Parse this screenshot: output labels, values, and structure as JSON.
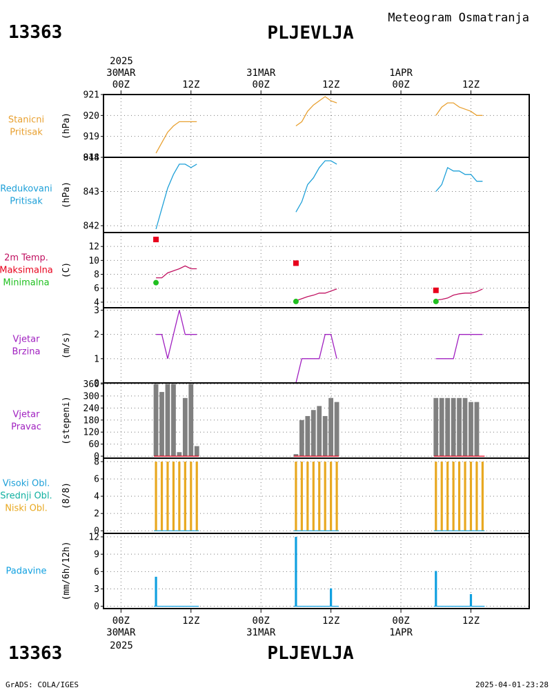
{
  "header": {
    "station_id": "13363",
    "station_name": "PLJEVLJA",
    "product": "Meteogram Osmatranja"
  },
  "footer": {
    "credit": "GrADS: COLA/IGES",
    "timestamp": "2025-04-01-23:28"
  },
  "colors": {
    "orange": "#e8a030",
    "cyan": "#1ea0d8",
    "red": "#e8001c",
    "green": "#20c020",
    "magenta": "#c01060",
    "purple": "#a020c0",
    "gray": "#808080",
    "yellow": "#e8a820",
    "teal": "#10b0a0",
    "blue": "#10a0e0",
    "grid": "#777777"
  },
  "time_axis": {
    "top_year": "2025",
    "bottom_year": "2025",
    "ticks": [
      {
        "h": 0,
        "label": "00Z",
        "date": "30MAR"
      },
      {
        "h": 12,
        "label": "12Z",
        "date": ""
      },
      {
        "h": 24,
        "label": "00Z",
        "date": "31MAR"
      },
      {
        "h": 36,
        "label": "12Z",
        "date": ""
      },
      {
        "h": 48,
        "label": "00Z",
        "date": "1APR"
      },
      {
        "h": 60,
        "label": "12Z",
        "date": ""
      }
    ],
    "range_hours": [
      -3,
      70
    ]
  },
  "chart_data": [
    {
      "type": "line",
      "label_lines": [
        {
          "text": "Stanicni",
          "color": "#e8a030"
        },
        {
          "text": "Pritisak",
          "color": "#e8a030"
        }
      ],
      "unit": "(hPa)",
      "ylim": [
        918,
        921
      ],
      "yticks": [
        {
          "v": 918,
          "t": "918"
        },
        {
          "v": 919,
          "t": "919"
        },
        {
          "v": 920,
          "t": "920"
        },
        {
          "v": 921,
          "t": "921"
        }
      ],
      "series": [
        {
          "color": "#e8a030",
          "segments": [
            [
              [
                6,
                918.2
              ],
              [
                7,
                918.7
              ],
              [
                8,
                919.2
              ],
              [
                9,
                919.5
              ],
              [
                10,
                919.7
              ],
              [
                11,
                919.7
              ],
              [
                12,
                919.7
              ],
              [
                13,
                919.7
              ]
            ],
            [
              [
                30,
                919.5
              ],
              [
                31,
                919.7
              ],
              [
                32,
                920.2
              ],
              [
                33,
                920.5
              ],
              [
                34,
                920.7
              ],
              [
                35,
                920.9
              ],
              [
                36,
                920.7
              ],
              [
                37,
                920.6
              ]
            ],
            [
              [
                54,
                920.0
              ],
              [
                55,
                920.4
              ],
              [
                56,
                920.6
              ],
              [
                57,
                920.6
              ],
              [
                58,
                920.4
              ],
              [
                59,
                920.3
              ],
              [
                60,
                920.2
              ],
              [
                61,
                920.0
              ],
              [
                62,
                920.0
              ]
            ]
          ]
        }
      ]
    },
    {
      "type": "line",
      "label_lines": [
        {
          "text": "Redukovani",
          "color": "#1ea0d8"
        },
        {
          "text": "Pritisak",
          "color": "#1ea0d8"
        }
      ],
      "unit": "(hPa)",
      "ylim": [
        841.8,
        844
      ],
      "yticks": [
        {
          "v": 842,
          "t": "842"
        },
        {
          "v": 843,
          "t": "843"
        },
        {
          "v": 844,
          "t": "844"
        }
      ],
      "series": [
        {
          "color": "#1ea0d8",
          "segments": [
            [
              [
                6,
                841.9
              ],
              [
                7,
                842.5
              ],
              [
                8,
                843.1
              ],
              [
                9,
                843.5
              ],
              [
                10,
                843.8
              ],
              [
                11,
                843.8
              ],
              [
                12,
                843.7
              ],
              [
                13,
                843.8
              ]
            ],
            [
              [
                30,
                842.4
              ],
              [
                31,
                842.7
              ],
              [
                32,
                843.2
              ],
              [
                33,
                843.4
              ],
              [
                34,
                843.7
              ],
              [
                35,
                843.9
              ],
              [
                36,
                843.9
              ],
              [
                37,
                843.8
              ]
            ],
            [
              [
                54,
                843.0
              ],
              [
                55,
                843.2
              ],
              [
                56,
                843.7
              ],
              [
                57,
                843.6
              ],
              [
                58,
                843.6
              ],
              [
                59,
                843.5
              ],
              [
                60,
                843.5
              ],
              [
                61,
                843.3
              ],
              [
                62,
                843.3
              ]
            ]
          ]
        }
      ]
    },
    {
      "type": "line",
      "label_lines": [
        {
          "text": "2m Temp.",
          "color": "#c01060"
        },
        {
          "text": "Maksimalna",
          "color": "#e8001c"
        },
        {
          "text": "Minimalna",
          "color": "#20c020"
        }
      ],
      "unit": "(C)",
      "ylim": [
        3.2,
        14
      ],
      "yticks": [
        {
          "v": 4,
          "t": "4"
        },
        {
          "v": 6,
          "t": "6"
        },
        {
          "v": 8,
          "t": "8"
        },
        {
          "v": 10,
          "t": "10"
        },
        {
          "v": 12,
          "t": "12"
        }
      ],
      "series": [
        {
          "color": "#c01060",
          "segments": [
            [
              [
                6,
                7.5
              ],
              [
                7,
                7.5
              ],
              [
                8,
                8.2
              ],
              [
                9,
                8.5
              ],
              [
                10,
                8.8
              ],
              [
                11,
                9.2
              ],
              [
                12,
                8.8
              ],
              [
                13,
                8.8
              ]
            ],
            [
              [
                30,
                4.2
              ],
              [
                31,
                4.5
              ],
              [
                32,
                4.8
              ],
              [
                33,
                5.0
              ],
              [
                34,
                5.3
              ],
              [
                35,
                5.3
              ],
              [
                36,
                5.6
              ],
              [
                37,
                5.9
              ]
            ],
            [
              [
                54,
                4.3
              ],
              [
                55,
                4.4
              ],
              [
                56,
                4.6
              ],
              [
                57,
                5.0
              ],
              [
                58,
                5.2
              ],
              [
                59,
                5.3
              ],
              [
                60,
                5.3
              ],
              [
                61,
                5.5
              ],
              [
                62,
                5.9
              ]
            ]
          ]
        }
      ],
      "markers": [
        {
          "name": "Maksimalna",
          "shape": "square",
          "color": "#e8001c",
          "points": [
            [
              6,
              13.0
            ],
            [
              30,
              9.6
            ],
            [
              54,
              5.7
            ]
          ]
        },
        {
          "name": "Minimalna",
          "shape": "circle",
          "color": "#20c020",
          "points": [
            [
              6,
              6.8
            ],
            [
              30,
              4.1
            ],
            [
              54,
              4.1
            ]
          ]
        }
      ]
    },
    {
      "type": "line",
      "label_lines": [
        {
          "text": "Vjetar",
          "color": "#a020c0"
        },
        {
          "text": "Brzina",
          "color": "#a020c0"
        }
      ],
      "unit": "(m/s)",
      "ylim": [
        0,
        3.1
      ],
      "yticks": [
        {
          "v": 0,
          "t": "0"
        },
        {
          "v": 1,
          "t": "1"
        },
        {
          "v": 2,
          "t": "2"
        },
        {
          "v": 3,
          "t": "3"
        }
      ],
      "series": [
        {
          "color": "#a020c0",
          "segments": [
            [
              [
                6,
                2
              ],
              [
                7,
                2
              ],
              [
                8,
                1
              ],
              [
                9,
                2
              ],
              [
                10,
                3
              ],
              [
                11,
                2
              ],
              [
                12,
                2
              ],
              [
                13,
                2
              ]
            ],
            [
              [
                30,
                0
              ],
              [
                31,
                1
              ],
              [
                32,
                1
              ],
              [
                33,
                1
              ],
              [
                34,
                1
              ],
              [
                35,
                2
              ],
              [
                36,
                2
              ],
              [
                37,
                1
              ]
            ],
            [
              [
                54,
                1
              ],
              [
                55,
                1
              ],
              [
                56,
                1
              ],
              [
                57,
                1
              ],
              [
                58,
                2
              ],
              [
                59,
                2
              ],
              [
                60,
                2
              ],
              [
                61,
                2
              ],
              [
                62,
                2
              ]
            ]
          ]
        }
      ]
    },
    {
      "type": "bar",
      "label_lines": [
        {
          "text": "Vjetar",
          "color": "#a020c0"
        },
        {
          "text": "Pravac",
          "color": "#a020c0"
        }
      ],
      "unit": "(stepeni)",
      "ylim": [
        -10,
        365
      ],
      "yticks": [
        {
          "v": 0,
          "t": "0"
        },
        {
          "v": 60,
          "t": "60"
        },
        {
          "v": 120,
          "t": "120"
        },
        {
          "v": 180,
          "t": "180"
        },
        {
          "v": 240,
          "t": "240"
        },
        {
          "v": 300,
          "t": "300"
        },
        {
          "v": 360,
          "t": "360"
        }
      ],
      "bar_color": "#808080",
      "baseline_color": "#e8001c",
      "bars": [
        [
          6,
          360
        ],
        [
          7,
          320
        ],
        [
          8,
          360
        ],
        [
          9,
          360
        ],
        [
          10,
          20
        ],
        [
          11,
          290
        ],
        [
          12,
          360
        ],
        [
          13,
          50
        ],
        [
          30,
          10
        ],
        [
          31,
          180
        ],
        [
          32,
          200
        ],
        [
          33,
          230
        ],
        [
          34,
          250
        ],
        [
          35,
          200
        ],
        [
          36,
          290
        ],
        [
          37,
          270
        ],
        [
          54,
          290
        ],
        [
          55,
          290
        ],
        [
          56,
          290
        ],
        [
          57,
          290
        ],
        [
          58,
          290
        ],
        [
          59,
          290
        ],
        [
          60,
          270
        ],
        [
          61,
          270
        ]
      ],
      "baselines": [
        [
          6,
          13
        ],
        [
          30,
          37
        ],
        [
          54,
          62
        ]
      ]
    },
    {
      "type": "bar",
      "label_lines": [
        {
          "text": "Visoki Obl.",
          "color": "#1ea0d8"
        },
        {
          "text": "Srednji Obl.",
          "color": "#10b0a0"
        },
        {
          "text": "Niski Obl.",
          "color": "#e8a820"
        }
      ],
      "unit": "(8/8)",
      "ylim": [
        -0.3,
        8.4
      ],
      "yticks": [
        {
          "v": 0,
          "t": "0"
        },
        {
          "v": 2,
          "t": "2"
        },
        {
          "v": 4,
          "t": "4"
        },
        {
          "v": 6,
          "t": "6"
        },
        {
          "v": 8,
          "t": "8"
        }
      ],
      "bar_color": "#e8a820",
      "baseline_color": "#1ea0d8",
      "bars": [
        [
          6,
          8
        ],
        [
          7,
          8
        ],
        [
          8,
          8
        ],
        [
          9,
          8
        ],
        [
          10,
          8
        ],
        [
          11,
          8
        ],
        [
          12,
          8
        ],
        [
          13,
          8
        ],
        [
          30,
          8
        ],
        [
          31,
          8
        ],
        [
          32,
          8
        ],
        [
          33,
          8
        ],
        [
          34,
          8
        ],
        [
          35,
          8
        ],
        [
          36,
          8
        ],
        [
          37,
          8
        ],
        [
          54,
          8
        ],
        [
          55,
          8
        ],
        [
          56,
          8
        ],
        [
          57,
          8
        ],
        [
          58,
          8
        ],
        [
          59,
          8
        ],
        [
          60,
          8
        ],
        [
          61,
          8
        ],
        [
          62,
          8
        ]
      ],
      "baselines": [
        [
          6,
          13
        ],
        [
          30,
          37
        ],
        [
          54,
          62
        ]
      ]
    },
    {
      "type": "bar",
      "label_lines": [
        {
          "text": "Padavine",
          "color": "#10a0e0"
        }
      ],
      "unit": "(mm/6h/12h)",
      "ylim": [
        -0.4,
        12.6
      ],
      "yticks": [
        {
          "v": 0,
          "t": "0"
        },
        {
          "v": 3,
          "t": "3"
        },
        {
          "v": 6,
          "t": "6"
        },
        {
          "v": 9,
          "t": "9"
        },
        {
          "v": 12,
          "t": "12"
        }
      ],
      "bar_color": "#10a0e0",
      "baseline_color": "#10a0e0",
      "bars": [
        [
          6,
          5.1
        ],
        [
          30,
          12.0
        ],
        [
          36,
          3.1
        ],
        [
          54,
          6.1
        ],
        [
          60,
          2.1
        ]
      ],
      "baselines": [
        [
          6,
          13
        ],
        [
          30,
          37
        ],
        [
          54,
          62
        ]
      ]
    }
  ]
}
